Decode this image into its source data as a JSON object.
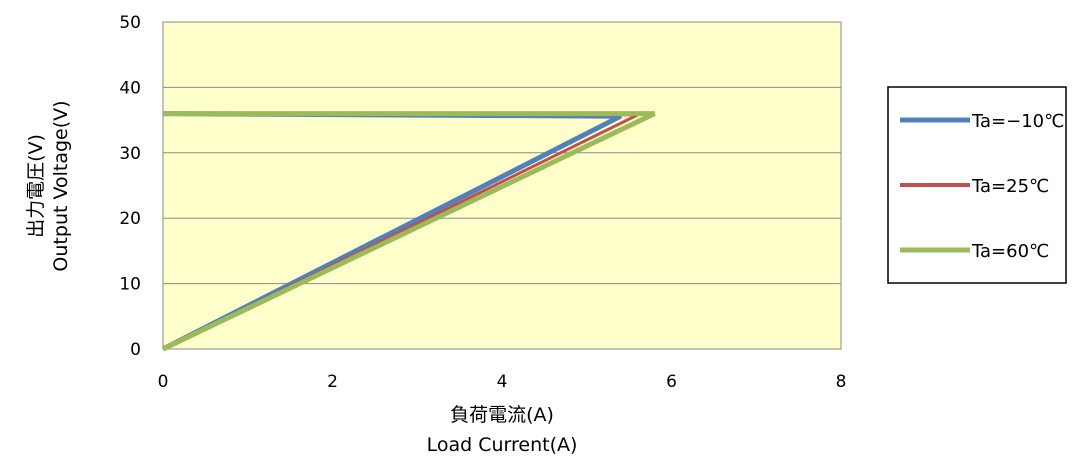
{
  "chart_data": {
    "type": "line",
    "xlabel": [
      "負荷電流(A)",
      "Load Current(A)"
    ],
    "ylabel": [
      "出力電圧(V)",
      "Output  Voltage(V)"
    ],
    "xlim": [
      0,
      8
    ],
    "ylim": [
      0,
      50
    ],
    "x_ticks": [
      "0",
      "2",
      "4",
      "6",
      "8"
    ],
    "y_ticks": [
      "0",
      "10",
      "20",
      "30",
      "40",
      "50"
    ],
    "grid": "horizontal",
    "legend_position": "right",
    "plot_background": "#ffffcc",
    "series": [
      {
        "name": "Ta=−10℃",
        "color": "#4f81bd",
        "points": [
          [
            0,
            36.0
          ],
          [
            5.4,
            35.6
          ],
          [
            0,
            0
          ]
        ]
      },
      {
        "name": "Ta=25℃",
        "color": "#c0504d",
        "points": [
          [
            0,
            36.0
          ],
          [
            5.6,
            35.8
          ],
          [
            0,
            0
          ]
        ]
      },
      {
        "name": "Ta=60℃",
        "color": "#9bbb59",
        "points": [
          [
            0,
            36.0
          ],
          [
            5.8,
            36.0
          ],
          [
            0,
            0
          ]
        ]
      }
    ]
  }
}
